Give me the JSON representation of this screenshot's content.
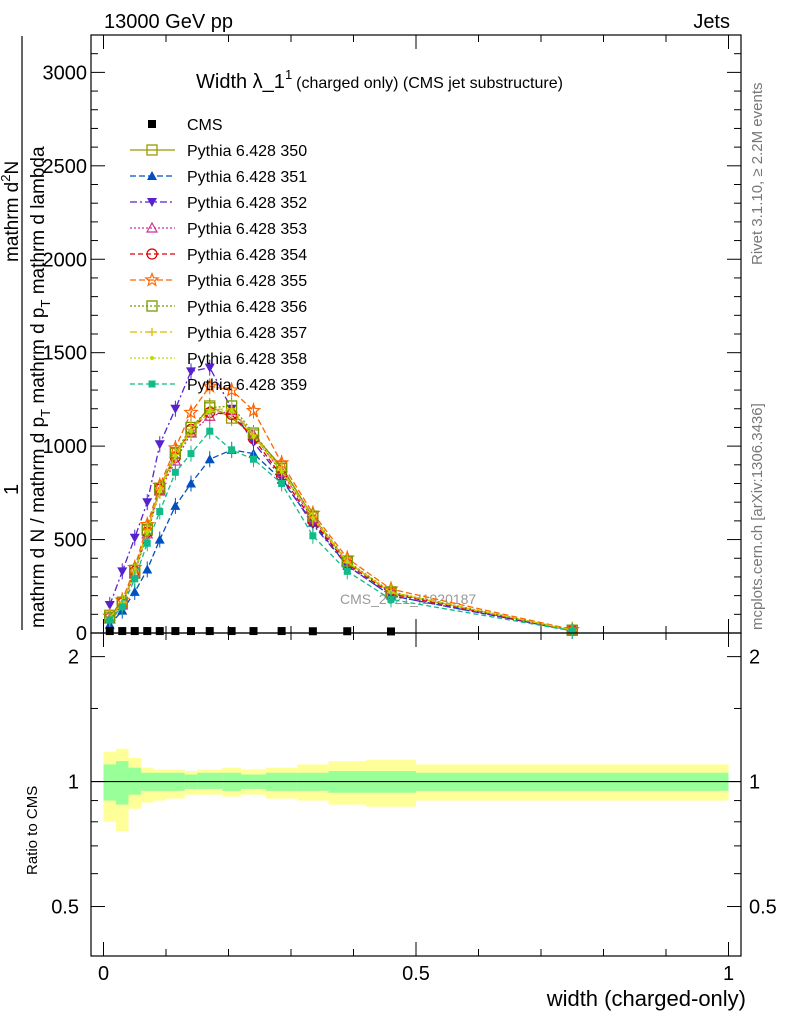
{
  "header": {
    "left": "13000 GeV pp",
    "right": "Jets"
  },
  "side_labels": {
    "rivet": "Rivet 3.1.10, ≥ 2.2M events",
    "mcplots": "mcplots.cern.ch [arXiv:1306.3436]"
  },
  "watermark": "CMS_2021_I1920187",
  "title": {
    "main": "Width λ_1",
    "superscript": "1",
    "suffix": "(charged only) (CMS jet substructure)"
  },
  "y_axis_label": {
    "numerator_one": "1",
    "denominator": "mathrm d N / mathrm d p",
    "denominator_sub": "T",
    "inner": "mathrm d p",
    "inner_sub": "T",
    "lambda": "mathrm d lambda",
    "top_num": "mathrm d",
    "top_exp": "2",
    "top_n": "N"
  },
  "ratio_label": "Ratio to CMS",
  "x_label": "width (charged-only)",
  "chart_data": [
    {
      "type": "line",
      "panel": "main",
      "xlim": [
        -0.02,
        1.02
      ],
      "ylim": [
        0,
        3200
      ],
      "x_ticks": [
        0,
        0.5,
        1
      ],
      "x_tick_labels": [
        "0",
        "0.5",
        "1"
      ],
      "y_ticks": [
        0,
        500,
        1000,
        1500,
        2000,
        2500,
        3000
      ],
      "y_tick_labels": [
        "0",
        "500",
        "1000",
        "1500",
        "2000",
        "2500",
        "3000"
      ],
      "legend_position": "top-left",
      "x": [
        0.01,
        0.03,
        0.05,
        0.07,
        0.09,
        0.115,
        0.14,
        0.17,
        0.205,
        0.24,
        0.285,
        0.335,
        0.39,
        0.46,
        0.75
      ],
      "data_name": "CMS",
      "data_values": [
        5,
        5,
        5,
        5,
        5,
        5,
        5,
        5,
        5,
        5,
        5,
        4,
        4,
        3,
        0
      ],
      "series": [
        {
          "name": "Pythia 6.428 350",
          "color": "#999900",
          "dash": "",
          "marker": "square-open",
          "values": [
            95,
            160,
            320,
            550,
            770,
            960,
            1080,
            1215,
            1150,
            1060,
            890,
            620,
            380,
            215,
            15
          ]
        },
        {
          "name": "Pythia 6.428 351",
          "color": "#0050c0",
          "dash": "6,3",
          "marker": "triangle-up",
          "values": [
            45,
            120,
            220,
            340,
            500,
            680,
            800,
            930,
            980,
            960,
            820,
            590,
            360,
            200,
            12
          ]
        },
        {
          "name": "Pythia 6.428 352",
          "color": "#5522cc",
          "dash": "7,3,2,3",
          "marker": "triangle-down",
          "values": [
            150,
            330,
            510,
            700,
            1010,
            1200,
            1400,
            1420,
            1200,
            1020,
            830,
            580,
            360,
            200,
            12
          ]
        },
        {
          "name": "Pythia 6.428 353",
          "color": "#cc3399",
          "dash": "2,2",
          "marker": "triangle-open",
          "values": [
            75,
            150,
            320,
            530,
            760,
            920,
            1070,
            1160,
            1190,
            1060,
            860,
            610,
            380,
            215,
            15
          ]
        },
        {
          "name": "Pythia 6.428 354",
          "color": "#dd0000",
          "dash": "5,3",
          "marker": "circle-open",
          "values": [
            80,
            160,
            330,
            540,
            770,
            940,
            1090,
            1180,
            1170,
            1040,
            840,
            600,
            370,
            210,
            14
          ]
        },
        {
          "name": "Pythia 6.428 355",
          "color": "#ff6600",
          "dash": "6,3",
          "marker": "star-open",
          "values": [
            90,
            175,
            350,
            580,
            790,
            990,
            1180,
            1320,
            1300,
            1190,
            910,
            640,
            400,
            235,
            18
          ]
        },
        {
          "name": "Pythia 6.428 356",
          "color": "#779900",
          "dash": "2,2",
          "marker": "square-open",
          "values": [
            85,
            165,
            335,
            555,
            775,
            965,
            1100,
            1205,
            1215,
            1070,
            880,
            625,
            385,
            220,
            15
          ]
        },
        {
          "name": "Pythia 6.428 357",
          "color": "#ddbb00",
          "dash": "7,3,2,3",
          "marker": "plus",
          "values": [
            82,
            162,
            330,
            548,
            768,
            955,
            1090,
            1195,
            1200,
            1060,
            870,
            620,
            380,
            218,
            15
          ]
        },
        {
          "name": "Pythia 6.428 358",
          "color": "#bbdd00",
          "dash": "2,2",
          "marker": "dot",
          "values": [
            80,
            158,
            325,
            540,
            760,
            945,
            1080,
            1185,
            1190,
            1050,
            865,
            615,
            378,
            216,
            15
          ]
        },
        {
          "name": "Pythia 6.428 359",
          "color": "#11bb88",
          "dash": "5,3",
          "marker": "square",
          "values": [
            70,
            140,
            290,
            480,
            650,
            860,
            960,
            1080,
            980,
            930,
            800,
            520,
            330,
            180,
            12
          ]
        }
      ]
    },
    {
      "type": "area",
      "panel": "ratio",
      "xlim": [
        -0.02,
        1.02
      ],
      "ylim": [
        0.38,
        2.28
      ],
      "y_ticks": [
        0.5,
        1,
        2
      ],
      "y_tick_labels": [
        "0.5",
        "1",
        "2"
      ],
      "reference_line": 1,
      "bin_edges": [
        0,
        0.02,
        0.04,
        0.06,
        0.08,
        0.1,
        0.13,
        0.15,
        0.19,
        0.22,
        0.26,
        0.31,
        0.36,
        0.42,
        0.5,
        1.0
      ],
      "band_yellow_low": [
        0.8,
        0.76,
        0.86,
        0.89,
        0.9,
        0.91,
        0.93,
        0.93,
        0.92,
        0.93,
        0.91,
        0.9,
        0.88,
        0.87,
        0.9
      ],
      "band_yellow_high": [
        1.18,
        1.2,
        1.14,
        1.08,
        1.07,
        1.07,
        1.06,
        1.07,
        1.08,
        1.07,
        1.08,
        1.1,
        1.12,
        1.13,
        1.1
      ],
      "band_green_low": [
        0.9,
        0.88,
        0.93,
        0.95,
        0.95,
        0.95,
        0.96,
        0.96,
        0.95,
        0.96,
        0.95,
        0.95,
        0.94,
        0.94,
        0.95
      ],
      "band_green_high": [
        1.1,
        1.12,
        1.08,
        1.05,
        1.05,
        1.05,
        1.04,
        1.05,
        1.05,
        1.04,
        1.05,
        1.05,
        1.06,
        1.06,
        1.05
      ]
    }
  ],
  "colors": {
    "yellow_band": "#ffff99",
    "green_band": "#99ff99"
  }
}
